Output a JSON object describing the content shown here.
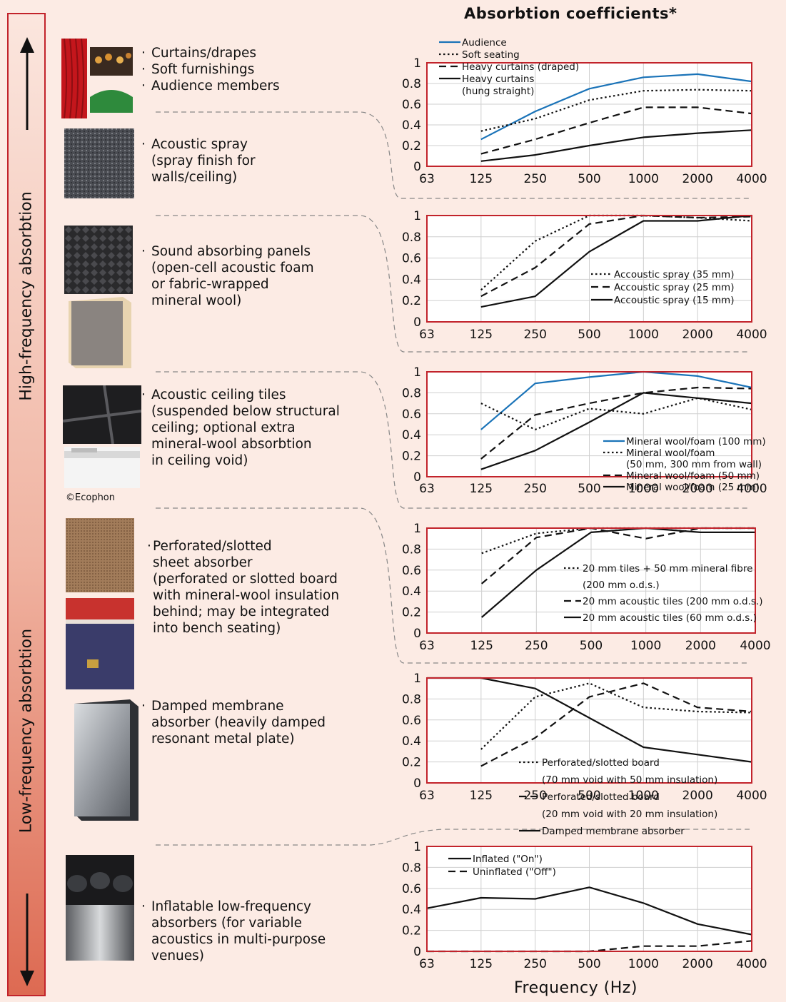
{
  "title": "Absorbtion coefficients*",
  "x_axis_title": "Frequency (Hz)",
  "side": {
    "high": "High-frequency absorbtion",
    "low": "Low-frequency absorbtion"
  },
  "credit": "©Ecophon",
  "colors": {
    "accent_red": "#c2232b",
    "blue_series": "#1a73b8",
    "background": "#fcebe4"
  },
  "items": [
    {
      "lines": [
        "Curtains/drapes",
        "Soft furnishings",
        "Audience members"
      ],
      "bulleted_each": true
    },
    {
      "lines": [
        "Acoustic spray",
        "(spray finish for",
        "walls/ceiling)"
      ]
    },
    {
      "lines": [
        "Sound absorbing panels",
        "(open-cell acoustic foam",
        "or fabric-wrapped",
        "mineral wool)"
      ]
    },
    {
      "lines": [
        "Acoustic ceiling tiles",
        "(suspended below structural",
        "ceiling; optional extra",
        "mineral-wool absorbtion",
        "in ceiling void)"
      ]
    },
    {
      "lines": [
        "Perforated/slotted",
        "sheet absorber",
        "(perforated or slotted board",
        "with mineral-wool insulation",
        "behind; may be integrated",
        "into bench seating)"
      ]
    },
    {
      "lines": [
        "Damped membrane",
        "absorber (heavily damped",
        "resonant metal plate)"
      ]
    },
    {
      "lines": [
        "Inflatable low-frequency",
        "absorbers (for variable",
        "acoustics in multi-purpose",
        "venues)"
      ]
    }
  ],
  "chart_data": [
    {
      "type": "line",
      "categories": [
        "63",
        "125",
        "250",
        "500",
        "1000",
        "2000",
        "4000"
      ],
      "ylim": [
        0,
        1
      ],
      "yticks": [
        "0",
        "0.2",
        "0.4",
        "0.6",
        "0.8",
        "1"
      ],
      "grid": true,
      "legend_position": "top-left",
      "series": [
        {
          "name": "Audience",
          "style": "solid",
          "color": "#1a73b8",
          "values": [
            null,
            0.26,
            0.53,
            0.75,
            0.86,
            0.89,
            0.82
          ]
        },
        {
          "name": "Soft seating",
          "style": "dotted",
          "color": "#111111",
          "values": [
            null,
            0.34,
            0.46,
            0.64,
            0.73,
            0.74,
            0.73
          ]
        },
        {
          "name": "Heavy curtains (draped)",
          "style": "dashed",
          "color": "#111111",
          "values": [
            null,
            0.12,
            0.26,
            0.42,
            0.57,
            0.57,
            0.51
          ]
        },
        {
          "name": "Heavy curtains\n(hung straight)",
          "style": "solid",
          "color": "#111111",
          "values": [
            null,
            0.05,
            0.11,
            0.2,
            0.28,
            0.32,
            0.35
          ]
        }
      ]
    },
    {
      "type": "line",
      "categories": [
        "63",
        "125",
        "250",
        "500",
        "1000",
        "2000",
        "4000"
      ],
      "ylim": [
        0,
        1
      ],
      "yticks": [
        "0",
        "0.2",
        "0.4",
        "0.6",
        "0.8",
        "1"
      ],
      "grid": true,
      "legend_position": "bottom-right",
      "series": [
        {
          "name": "Accoustic spray (35 mm)",
          "style": "dotted",
          "color": "#111111",
          "values": [
            null,
            0.3,
            0.76,
            1.0,
            1.0,
            0.98,
            0.95
          ]
        },
        {
          "name": "Accoustic spray (25 mm)",
          "style": "dashed",
          "color": "#111111",
          "values": [
            null,
            0.24,
            0.51,
            0.92,
            1.0,
            0.98,
            0.99
          ]
        },
        {
          "name": "Accoustic spray (15 mm)",
          "style": "solid",
          "color": "#111111",
          "values": [
            null,
            0.14,
            0.24,
            0.66,
            0.95,
            0.95,
            1.0
          ]
        }
      ]
    },
    {
      "type": "line",
      "categories": [
        "63",
        "125",
        "250",
        "500",
        "1000",
        "2000",
        "4000"
      ],
      "ylim": [
        0,
        1
      ],
      "yticks": [
        "0",
        "0.2",
        "0.4",
        "0.6",
        "0.8",
        "1"
      ],
      "grid": true,
      "legend_position": "bottom-right",
      "series": [
        {
          "name": "Mineral wool/foam (100 mm)",
          "style": "solid",
          "color": "#1a73b8",
          "values": [
            null,
            0.45,
            0.89,
            0.95,
            1.0,
            0.96,
            0.85
          ]
        },
        {
          "name": "Mineral wool/foam\n(50 mm, 300 mm from wall)",
          "style": "dotted",
          "color": "#111111",
          "values": [
            null,
            0.7,
            0.45,
            0.65,
            0.6,
            0.75,
            0.64
          ]
        },
        {
          "name": "Mineral wool/foam (50 mm)",
          "style": "dashed",
          "color": "#111111",
          "values": [
            null,
            0.17,
            0.59,
            0.7,
            0.8,
            0.85,
            0.84
          ]
        },
        {
          "name": "Mineral wool/foam (25 mm)",
          "style": "solid",
          "color": "#111111",
          "values": [
            null,
            0.07,
            0.25,
            0.52,
            0.8,
            0.75,
            0.7
          ]
        }
      ]
    },
    {
      "type": "line",
      "categories": [
        "63",
        "125",
        "250",
        "500",
        "1000",
        "2000",
        "4000"
      ],
      "ylim": [
        0,
        1
      ],
      "yticks": [
        "0",
        "0.2",
        "0.4",
        "0.6",
        "0.8",
        "1"
      ],
      "grid": true,
      "legend_position": "right",
      "series": [
        {
          "name": "20 mm tiles + 50 mm mineral fibre\n(200 mm o.d.s.)",
          "style": "dotted",
          "color": "#111111",
          "values": [
            null,
            0.76,
            0.95,
            1.0,
            1.0,
            1.0,
            1.0
          ]
        },
        {
          "name": "20 mm acoustic tiles (200 mm o.d.s.)",
          "style": "dashed",
          "color": "#111111",
          "values": [
            null,
            0.47,
            0.91,
            1.0,
            0.9,
            1.0,
            1.0
          ]
        },
        {
          "name": "20 mm acoustic tiles (60 mm o.d.s.)",
          "style": "solid",
          "color": "#111111",
          "values": [
            null,
            0.15,
            0.6,
            0.96,
            1.0,
            0.96,
            0.96
          ]
        }
      ]
    },
    {
      "type": "line",
      "categories": [
        "63",
        "125",
        "250",
        "500",
        "1000",
        "2000",
        "4000"
      ],
      "ylim": [
        0,
        1
      ],
      "yticks": [
        "0",
        "0.2",
        "0.4",
        "0.6",
        "0.8",
        "1"
      ],
      "grid": true,
      "legend_position": "below-right",
      "series": [
        {
          "name": "Perforated/slotted board\n(70 mm void with 50 mm insulation)",
          "style": "dotted",
          "color": "#111111",
          "values": [
            null,
            0.32,
            0.82,
            0.95,
            0.72,
            0.68,
            0.67
          ]
        },
        {
          "name": "Perforated/slotted board\n(20 mm void with 20 mm insulation)",
          "style": "dashed",
          "color": "#111111",
          "values": [
            null,
            0.16,
            0.43,
            0.82,
            0.95,
            0.72,
            0.68
          ]
        },
        {
          "name": "Damped membrane absorber",
          "style": "solid",
          "color": "#111111",
          "values": [
            1.0,
            1.0,
            0.9,
            0.62,
            0.34,
            0.27,
            0.2
          ]
        }
      ]
    },
    {
      "type": "line",
      "categories": [
        "63",
        "125",
        "250",
        "500",
        "1000",
        "2000",
        "4000"
      ],
      "ylim": [
        0,
        1
      ],
      "yticks": [
        "0",
        "0.2",
        "0.4",
        "0.6",
        "0.8",
        "1"
      ],
      "grid": true,
      "legend_position": "top-left",
      "series": [
        {
          "name": "Inflated (\"On\")",
          "style": "solid",
          "color": "#111111",
          "values": [
            0.41,
            0.51,
            0.5,
            0.61,
            0.46,
            0.26,
            0.16
          ]
        },
        {
          "name": "Uninflated (\"Off\")",
          "style": "dashed",
          "color": "#111111",
          "values": [
            0.0,
            0.0,
            0.0,
            0.0,
            0.05,
            0.05,
            0.1
          ]
        }
      ]
    }
  ]
}
